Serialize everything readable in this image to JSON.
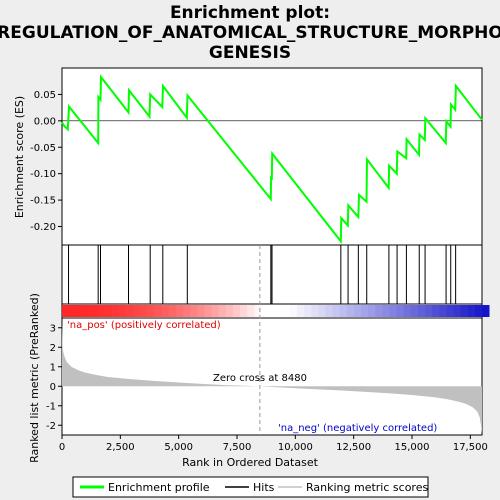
{
  "title_lines": [
    "Enrichment plot:",
    "REGULATION_OF_ANATOMICAL_STRUCTURE_MORPHO",
    "GENESIS"
  ],
  "chart_data": [
    {
      "type": "line",
      "name": "Enrichment profile",
      "ylabel": "Enrichment score (ES)",
      "ylim": [
        -0.235,
        0.1
      ],
      "yticks": [
        0.05,
        0.0,
        -0.05,
        -0.1,
        -0.15,
        -0.2
      ],
      "ytick_labels": [
        "0.05",
        "0.00",
        "-0.05",
        "-0.10",
        "-0.15",
        "-0.20"
      ],
      "xlim": [
        0,
        18000
      ],
      "color": "#00ff00",
      "x": [
        0,
        100,
        250,
        300,
        1550,
        1560,
        1650,
        1670,
        2850,
        2870,
        3750,
        3780,
        4300,
        4330,
        5350,
        5380,
        8950,
        8960,
        8990,
        9010,
        11950,
        11970,
        12250,
        12270,
        12700,
        12730,
        13050,
        13070,
        14000,
        14020,
        14350,
        14370,
        14750,
        14770,
        15300,
        15320,
        15550,
        15570,
        16450,
        16470,
        16650,
        16670,
        16850,
        16880,
        18000
      ],
      "y": [
        -0.003,
        -0.01,
        -0.016,
        0.027,
        -0.042,
        0.045,
        0.04,
        0.083,
        0.016,
        0.058,
        0.008,
        0.05,
        0.026,
        0.066,
        0.006,
        0.048,
        -0.148,
        -0.105,
        -0.112,
        -0.062,
        -0.228,
        -0.184,
        -0.198,
        -0.16,
        -0.182,
        -0.14,
        -0.153,
        -0.073,
        -0.127,
        -0.085,
        -0.1,
        -0.058,
        -0.071,
        -0.035,
        -0.064,
        -0.026,
        -0.036,
        0.005,
        -0.042,
        -0.001,
        -0.011,
        0.031,
        0.021,
        0.066,
        0.002
      ]
    },
    {
      "type": "bar",
      "name": "Hits",
      "x": [
        280,
        1550,
        1650,
        2850,
        3780,
        4320,
        5370,
        8950,
        9000,
        11950,
        12260,
        12700,
        13060,
        14010,
        14360,
        14760,
        15310,
        15560,
        16460,
        16660,
        16870
      ]
    },
    {
      "type": "area",
      "name": "Ranking metric scores",
      "ylabel": "Ranked list metric (PreRanked)",
      "xlabel": "Rank in Ordered Dataset",
      "ylim": [
        -2.5,
        3.5
      ],
      "yticks": [
        3,
        2,
        1,
        0,
        -1,
        -2
      ],
      "ytick_labels": [
        "3",
        "2",
        "1",
        "0",
        "-1",
        "-2"
      ],
      "xticks": [
        0,
        2500,
        5000,
        7500,
        10000,
        12500,
        15000,
        17500
      ],
      "xtick_labels": [
        "0",
        "2,500",
        "5,000",
        "7,500",
        "10,000",
        "12,500",
        "15,000",
        "17,500"
      ],
      "xlim": [
        0,
        18000
      ],
      "zero_cross": 8480,
      "x": [
        0,
        30,
        100,
        200,
        400,
        700,
        1000,
        1500,
        2000,
        3000,
        4000,
        5000,
        6000,
        7000,
        8000,
        8480,
        9000,
        10000,
        11000,
        12000,
        13000,
        14000,
        15000,
        16000,
        16500,
        17000,
        17300,
        17600,
        17800,
        17900,
        17950,
        18000
      ],
      "y": [
        3.35,
        1.9,
        1.55,
        1.25,
        1.0,
        0.82,
        0.7,
        0.57,
        0.47,
        0.36,
        0.27,
        0.19,
        0.12,
        0.06,
        0.02,
        0.0,
        -0.04,
        -0.1,
        -0.16,
        -0.22,
        -0.29,
        -0.36,
        -0.45,
        -0.57,
        -0.66,
        -0.79,
        -0.9,
        -1.08,
        -1.3,
        -1.6,
        -1.95,
        -2.4
      ],
      "color": "#c0c0c0"
    }
  ],
  "labels": {
    "pos": "'na_pos' (positively correlated)",
    "neg": "'na_neg' (negatively correlated)",
    "zero": "Zero cross at 8480"
  },
  "legend": [
    {
      "label": "Enrichment profile",
      "color": "#00ff00"
    },
    {
      "label": "Hits",
      "color": "#000000"
    },
    {
      "label": "Ranking metric scores",
      "color": "#c0c0c0"
    }
  ]
}
